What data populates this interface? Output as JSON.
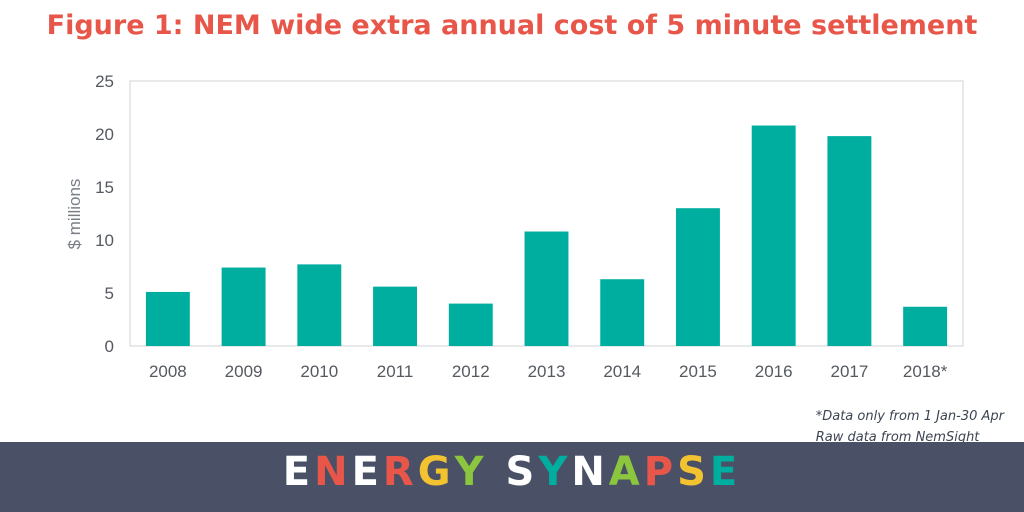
{
  "chart_data": {
    "type": "bar",
    "title": "Figure 1: NEM wide extra annual cost of 5 minute settlement",
    "ylabel": "$ millions",
    "xlabel": "",
    "categories": [
      "2008",
      "2009",
      "2010",
      "2011",
      "2012",
      "2013",
      "2014",
      "2015",
      "2016",
      "2017",
      "2018*"
    ],
    "values": [
      5.1,
      7.4,
      7.7,
      5.6,
      4.0,
      10.8,
      6.3,
      13.0,
      20.8,
      19.8,
      3.7
    ],
    "ylim": [
      0,
      25
    ],
    "yticks": [
      0,
      5,
      10,
      15,
      20,
      25
    ],
    "grid": false,
    "bar_color": "#00ae9f"
  },
  "notes": {
    "line1": "*Data only from 1 Jan-30 Apr",
    "line2": "Raw data from NemSight"
  },
  "footer": {
    "brand": "ENERGY SYNAPSE",
    "letter_colors": [
      "#ffffff",
      "#e8564a",
      "#ffffff",
      "#e8564a",
      "#f2c230",
      "#8cc63f",
      "#ffffff",
      "#00ae9f",
      "#ffffff",
      "#8cc63f",
      "#e8564a",
      "#f2c230",
      "#00ae9f",
      "#ffffff"
    ],
    "background": "#4a5166"
  }
}
